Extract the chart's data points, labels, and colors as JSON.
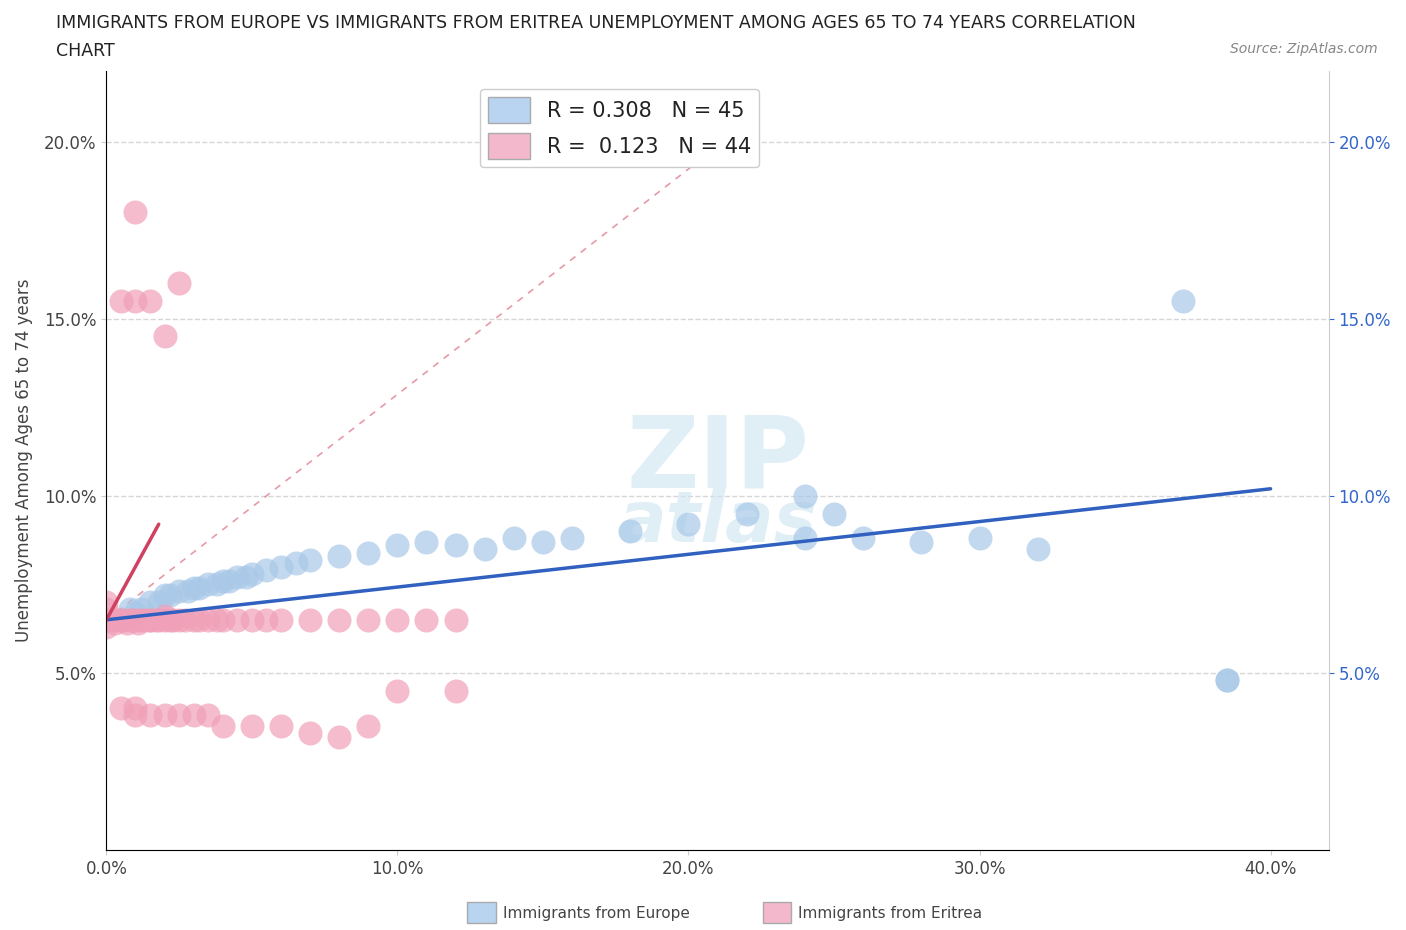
{
  "title_line1": "IMMIGRANTS FROM EUROPE VS IMMIGRANTS FROM ERITREA UNEMPLOYMENT AMONG AGES 65 TO 74 YEARS CORRELATION",
  "title_line2": "CHART",
  "source": "Source: ZipAtlas.com",
  "ylabel": "Unemployment Among Ages 65 to 74 years",
  "xlim": [
    0.0,
    0.42
  ],
  "ylim": [
    0.0,
    0.22
  ],
  "yticks": [
    0.05,
    0.1,
    0.15,
    0.2
  ],
  "ytick_labels": [
    "5.0%",
    "10.0%",
    "15.0%",
    "20.0%"
  ],
  "xticks": [
    0.0,
    0.1,
    0.2,
    0.3,
    0.4
  ],
  "xtick_labels": [
    "0.0%",
    "10.0%",
    "20.0%",
    "30.0%",
    "40.0%"
  ],
  "europe_R": 0.308,
  "europe_N": 45,
  "eritrea_R": 0.123,
  "eritrea_N": 44,
  "europe_color": "#a8c8e8",
  "eritrea_color": "#f0a0b8",
  "europe_line_color": "#3060c0",
  "eritrea_line_color": "#d04060",
  "legend_europe_fill": "#b8d4f0",
  "legend_eritrea_fill": "#f4b8cc",
  "europe_x": [
    0.005,
    0.008,
    0.01,
    0.012,
    0.015,
    0.018,
    0.02,
    0.022,
    0.025,
    0.028,
    0.03,
    0.032,
    0.035,
    0.038,
    0.04,
    0.042,
    0.045,
    0.048,
    0.05,
    0.055,
    0.06,
    0.065,
    0.07,
    0.08,
    0.09,
    0.1,
    0.11,
    0.12,
    0.13,
    0.14,
    0.15,
    0.16,
    0.18,
    0.2,
    0.22,
    0.24,
    0.25,
    0.28,
    0.3,
    0.32,
    0.24,
    0.26,
    0.37,
    0.385,
    0.385
  ],
  "europe_y": [
    0.065,
    0.068,
    0.067,
    0.068,
    0.07,
    0.07,
    0.072,
    0.072,
    0.073,
    0.073,
    0.074,
    0.074,
    0.075,
    0.075,
    0.076,
    0.076,
    0.077,
    0.077,
    0.078,
    0.079,
    0.08,
    0.081,
    0.082,
    0.083,
    0.084,
    0.086,
    0.087,
    0.086,
    0.085,
    0.088,
    0.087,
    0.088,
    0.09,
    0.092,
    0.095,
    0.088,
    0.095,
    0.087,
    0.088,
    0.085,
    0.1,
    0.088,
    0.155,
    0.048,
    0.048
  ],
  "eritrea_x": [
    0.0,
    0.0,
    0.0,
    0.0,
    0.0,
    0.002,
    0.003,
    0.004,
    0.005,
    0.006,
    0.007,
    0.008,
    0.009,
    0.01,
    0.011,
    0.012,
    0.013,
    0.015,
    0.015,
    0.017,
    0.018,
    0.02,
    0.02,
    0.022,
    0.023,
    0.025,
    0.027,
    0.03,
    0.032,
    0.035,
    0.038,
    0.04,
    0.045,
    0.05,
    0.055,
    0.06,
    0.07,
    0.08,
    0.09,
    0.1,
    0.11,
    0.12,
    0.01,
    0.025
  ],
  "eritrea_y": [
    0.065,
    0.068,
    0.07,
    0.065,
    0.063,
    0.065,
    0.064,
    0.065,
    0.065,
    0.065,
    0.064,
    0.065,
    0.065,
    0.065,
    0.064,
    0.065,
    0.065,
    0.065,
    0.065,
    0.065,
    0.065,
    0.065,
    0.066,
    0.065,
    0.065,
    0.065,
    0.065,
    0.065,
    0.065,
    0.065,
    0.065,
    0.065,
    0.065,
    0.065,
    0.065,
    0.065,
    0.065,
    0.065,
    0.065,
    0.065,
    0.065,
    0.065,
    0.18,
    0.16
  ],
  "eritrea_outliers_x": [
    0.005,
    0.01,
    0.015,
    0.02,
    0.005,
    0.01,
    0.01,
    0.015,
    0.02,
    0.025,
    0.03,
    0.035,
    0.04,
    0.05,
    0.06,
    0.07,
    0.08,
    0.09,
    0.1,
    0.12
  ],
  "eritrea_outliers_y": [
    0.155,
    0.155,
    0.155,
    0.145,
    0.04,
    0.04,
    0.038,
    0.038,
    0.038,
    0.038,
    0.038,
    0.038,
    0.035,
    0.035,
    0.035,
    0.033,
    0.032,
    0.035,
    0.045,
    0.045
  ]
}
